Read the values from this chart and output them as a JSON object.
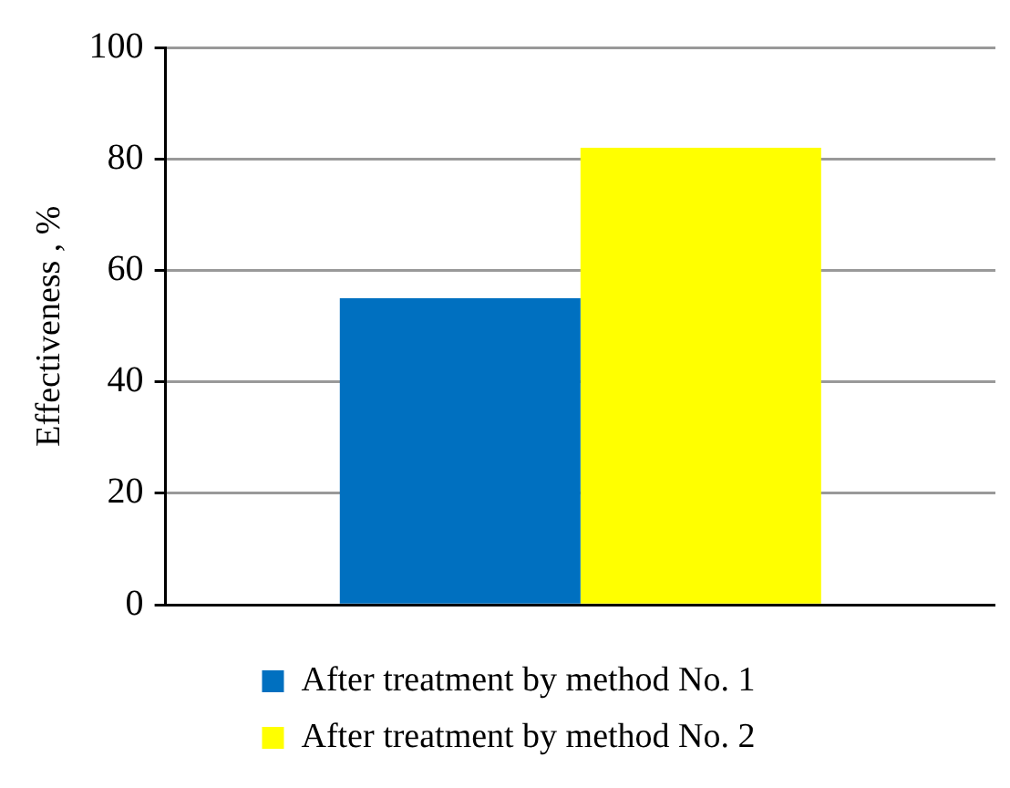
{
  "chart_data": {
    "type": "bar",
    "ylabel": "Effectiveness , %",
    "categories": [
      null
    ],
    "series": [
      {
        "name": "After treatment by method No. 1",
        "color": "#0070c0",
        "values": [
          55
        ]
      },
      {
        "name": "After treatment by method No. 2",
        "color": "#ffff00",
        "values": [
          82
        ]
      }
    ],
    "ylim": [
      0,
      100
    ],
    "yticks": [
      0,
      20,
      40,
      60,
      80,
      100
    ],
    "grid": "y",
    "legend": "bottom"
  }
}
